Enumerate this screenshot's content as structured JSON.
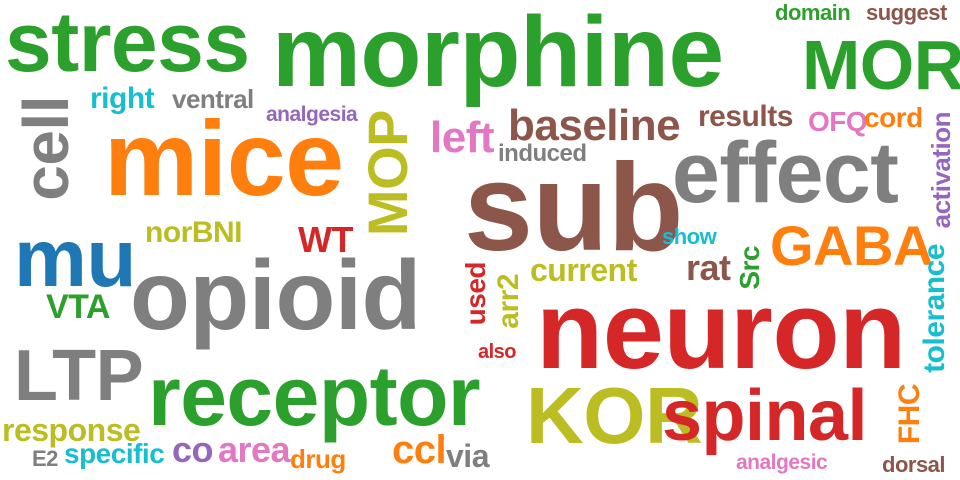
{
  "words": {
    "stress": "stress",
    "morphine": "morphine",
    "MOR": "MOR",
    "domain": "domain",
    "suggest": "suggest",
    "right": "right",
    "ventral": "ventral",
    "analgesia": "analgesia",
    "baseline": "baseline",
    "results": "results",
    "OFQ": "OFQ",
    "cord": "cord",
    "cell": "cell",
    "mice": "mice",
    "MOP": "MOP",
    "left": "left",
    "induced": "induced",
    "effect": "effect",
    "activation": "activation",
    "sub": "sub",
    "mu": "mu",
    "norBNI": "norBNI",
    "WT": "WT",
    "show": "show",
    "GABA": "GABA",
    "tolerance": "tolerance",
    "opioid": "opioid",
    "rat": "rat",
    "Src": "Src",
    "current": "current",
    "used": "used",
    "arr2": "arr2",
    "VTA": "VTA",
    "neuron": "neuron",
    "LTP": "LTP",
    "also": "also",
    "receptor": "receptor",
    "KOR": "KOR",
    "spinal": "spinal",
    "FHC": "FHC",
    "response": "response",
    "E2": "E2",
    "specific": "specific",
    "co": "co",
    "area": "area",
    "drug": "drug",
    "ccl": "ccl",
    "via": "via",
    "analgesic": "analgesic",
    "dorsal": "dorsal"
  },
  "colors": {
    "green": "#2ca02c",
    "orange": "#ff7f0e",
    "gray": "#7f7f7f",
    "brown": "#8c564b",
    "red": "#d62728",
    "olive": "#bcbd22",
    "pink": "#e377c2",
    "cyan": "#17becf",
    "purple": "#9467bd",
    "blue": "#1f77b4"
  }
}
